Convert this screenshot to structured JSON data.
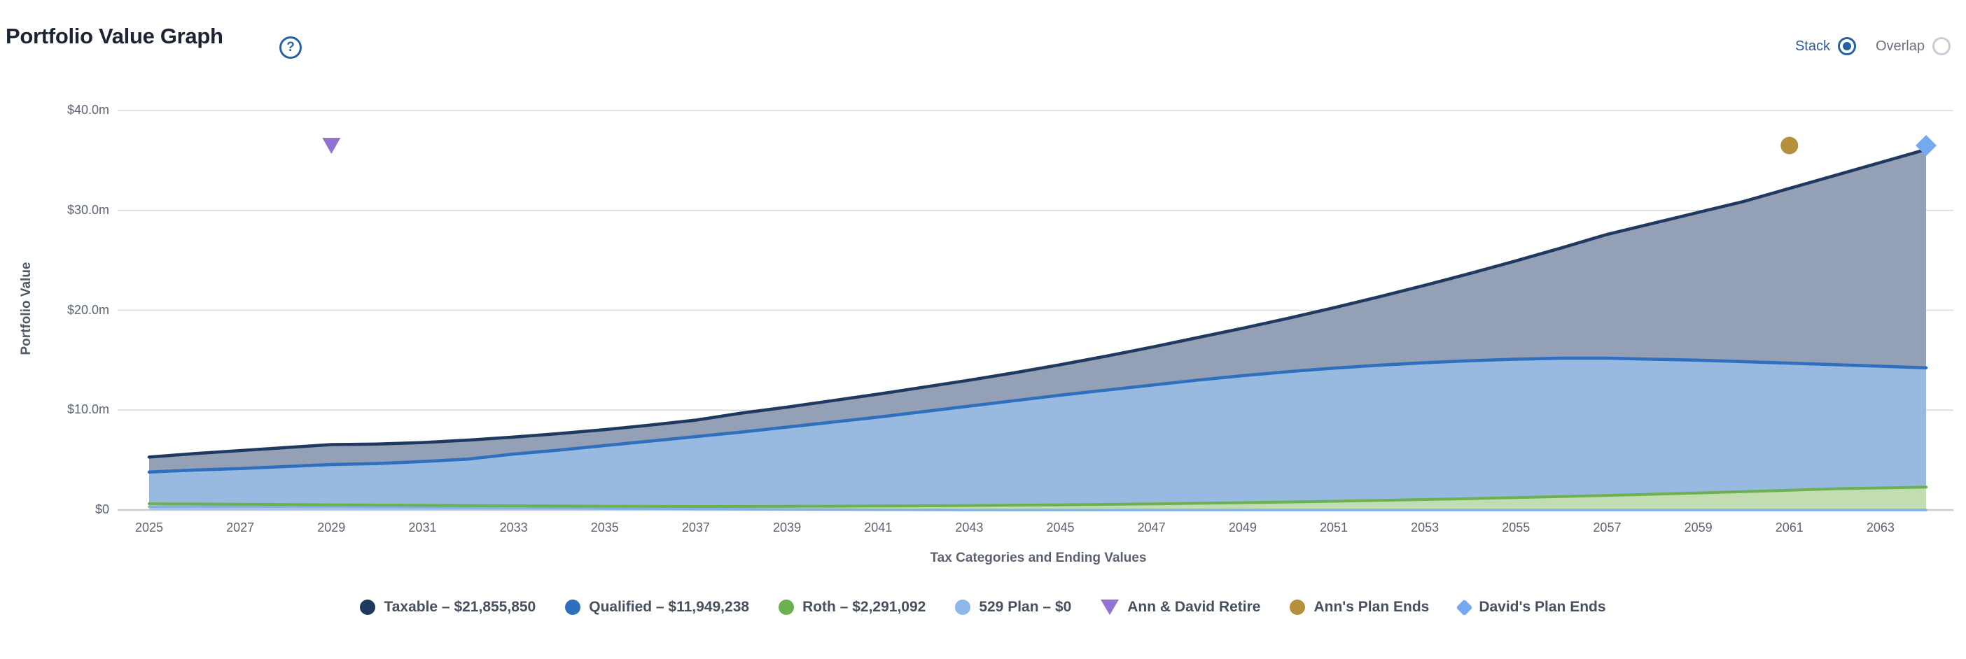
{
  "header": {
    "title": "Portfolio Value Graph",
    "help_icon": "question-mark-icon"
  },
  "controls": {
    "options": [
      {
        "label": "Stack",
        "selected": true
      },
      {
        "label": "Overlap",
        "selected": false
      }
    ],
    "accent_color": "#2563a8"
  },
  "chart_data": {
    "type": "area",
    "stacked": true,
    "xlabel": "Tax Categories and Ending Values",
    "ylabel": "Portfolio Value",
    "unit": "millions USD",
    "ylim": [
      0,
      40
    ],
    "grid": true,
    "y_ticks": [
      {
        "value": 0,
        "label": "$0"
      },
      {
        "value": 10,
        "label": "$10.0m"
      },
      {
        "value": 20,
        "label": "$20.0m"
      },
      {
        "value": 30,
        "label": "$30.0m"
      },
      {
        "value": 40,
        "label": "$40.0m"
      }
    ],
    "x_ticks": [
      2025,
      2027,
      2029,
      2031,
      2033,
      2035,
      2037,
      2039,
      2041,
      2043,
      2045,
      2047,
      2049,
      2051,
      2053,
      2055,
      2057,
      2059,
      2061,
      2063
    ],
    "x": [
      2025,
      2026,
      2027,
      2028,
      2029,
      2030,
      2031,
      2032,
      2033,
      2034,
      2035,
      2036,
      2037,
      2038,
      2039,
      2040,
      2041,
      2042,
      2043,
      2044,
      2045,
      2046,
      2047,
      2048,
      2049,
      2050,
      2051,
      2052,
      2053,
      2054,
      2055,
      2056,
      2057,
      2058,
      2059,
      2060,
      2061,
      2062,
      2063,
      2064
    ],
    "series": [
      {
        "name": "529 Plan",
        "ending_label": "$0",
        "line_color": "#7fb0e6",
        "fill_color": "#a9c6e8",
        "line_width": 3.5,
        "values": [
          0.32,
          0.33,
          0.34,
          0.34,
          0.33,
          0.31,
          0.28,
          0.25,
          0.22,
          0.19,
          0.16,
          0.13,
          0.1,
          0.08,
          0.06,
          0.04,
          0.02,
          0.01,
          0,
          0,
          0,
          0,
          0,
          0,
          0,
          0,
          0,
          0,
          0,
          0,
          0,
          0,
          0,
          0,
          0,
          0,
          0,
          0,
          0,
          0
        ]
      },
      {
        "name": "Roth",
        "ending_label": "$2,291,092",
        "line_color": "#6cb14f",
        "fill_color": "#c2ddb1",
        "line_width": 4,
        "values": [
          0.3,
          0.27,
          0.24,
          0.21,
          0.19,
          0.19,
          0.19,
          0.19,
          0.2,
          0.21,
          0.22,
          0.24,
          0.26,
          0.28,
          0.31,
          0.34,
          0.38,
          0.41,
          0.45,
          0.48,
          0.52,
          0.56,
          0.61,
          0.67,
          0.73,
          0.8,
          0.88,
          0.96,
          1.05,
          1.14,
          1.24,
          1.35,
          1.46,
          1.58,
          1.71,
          1.84,
          1.98,
          2.13,
          2.21,
          2.29
        ]
      },
      {
        "name": "Qualified",
        "ending_label": "$11,949,238",
        "line_color": "#2e6fbe",
        "fill_color": "#98bae1",
        "line_width": 4.5,
        "values": [
          3.18,
          3.4,
          3.57,
          3.8,
          4.03,
          4.15,
          4.38,
          4.66,
          5.18,
          5.6,
          6.07,
          6.53,
          6.99,
          7.44,
          7.93,
          8.42,
          8.9,
          9.43,
          9.95,
          10.47,
          10.98,
          11.44,
          11.89,
          12.33,
          12.72,
          13.05,
          13.32,
          13.54,
          13.7,
          13.81,
          13.86,
          13.85,
          13.74,
          13.52,
          13.29,
          13.01,
          12.72,
          12.42,
          12.19,
          11.95
        ]
      },
      {
        "name": "Taxable",
        "ending_label": "$21,855,850",
        "line_color": "#1f3a60",
        "fill_color": "#93a0b5",
        "line_width": 4.5,
        "values": [
          1.5,
          1.65,
          1.8,
          1.9,
          2.0,
          1.95,
          1.9,
          1.9,
          1.7,
          1.65,
          1.6,
          1.6,
          1.65,
          1.9,
          2.0,
          2.15,
          2.3,
          2.45,
          2.6,
          2.8,
          3.05,
          3.4,
          3.8,
          4.25,
          4.75,
          5.35,
          6.05,
          6.85,
          7.75,
          8.75,
          9.85,
          11.05,
          12.4,
          13.6,
          14.8,
          16.05,
          17.5,
          18.95,
          20.4,
          21.86
        ]
      }
    ],
    "event_markers": [
      {
        "label": "Ann & David Retire",
        "year": 2029,
        "shape": "triangle-down",
        "color": "#9273d2"
      },
      {
        "label": "Ann's Plan Ends",
        "year": 2061,
        "shape": "circle",
        "color": "#b5913c"
      },
      {
        "label": "David's Plan Ends",
        "year": 2064,
        "shape": "diamond",
        "color": "#74a9f2"
      }
    ],
    "legend": {
      "separator": " – ",
      "items": [
        {
          "marker": "circle",
          "color": "#1f3a60",
          "name": "Taxable",
          "value": "$21,855,850"
        },
        {
          "marker": "circle",
          "color": "#2e6fbe",
          "name": "Qualified",
          "value": "$11,949,238"
        },
        {
          "marker": "circle",
          "color": "#6cb14f",
          "name": "Roth",
          "value": "$2,291,092"
        },
        {
          "marker": "circle",
          "color": "#8db7e8",
          "name": "529 Plan",
          "value": "$0"
        },
        {
          "marker": "triangle-down",
          "color": "#9273d2",
          "name": "Ann & David Retire"
        },
        {
          "marker": "circle",
          "color": "#b5913c",
          "name": "Ann's Plan Ends"
        },
        {
          "marker": "diamond",
          "color": "#74a9f2",
          "name": "David's Plan Ends"
        }
      ]
    },
    "grid_color": "#d8d9db",
    "axis_line_color": "#cbccce"
  }
}
